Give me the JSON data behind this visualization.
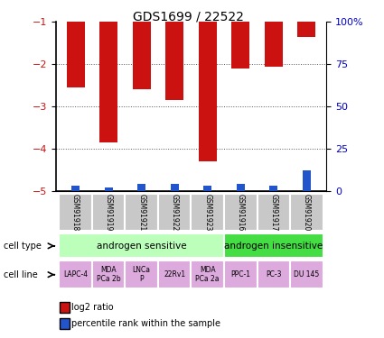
{
  "title": "GDS1699 / 22522",
  "samples": [
    "GSM91918",
    "GSM91919",
    "GSM91921",
    "GSM91922",
    "GSM91923",
    "GSM91916",
    "GSM91917",
    "GSM91920"
  ],
  "log2_ratio": [
    -2.55,
    -3.85,
    -2.6,
    -2.85,
    -4.3,
    -2.1,
    -2.05,
    -1.35
  ],
  "percentile_rank": [
    3,
    2,
    4,
    4,
    3,
    4,
    3,
    12
  ],
  "ylim": [
    -5,
    -1
  ],
  "yticks": [
    -5,
    -4,
    -3,
    -2,
    -1
  ],
  "right_yticks": [
    0,
    25,
    50,
    75,
    100
  ],
  "right_ylim": [
    0,
    100
  ],
  "bar_color": "#cc1111",
  "blue_color": "#2255cc",
  "cell_type_groups": [
    {
      "label": "androgen sensitive",
      "start": 0,
      "end": 5,
      "color": "#bbffbb"
    },
    {
      "label": "androgen insensitive",
      "start": 5,
      "end": 8,
      "color": "#44dd44"
    }
  ],
  "cell_lines": [
    "LAPC-4",
    "MDA\nPCa 2b",
    "LNCa\nP",
    "22Rv1",
    "MDA\nPCa 2a",
    "PPC-1",
    "PC-3",
    "DU 145"
  ],
  "cell_line_color": "#ddaadd",
  "gsm_bg_color": "#c8c8c8",
  "legend_red_label": "log2 ratio",
  "legend_blue_label": "percentile rank within the sample",
  "cell_type_label": "cell type",
  "cell_line_label": "cell line",
  "left_tick_color": "#cc1111",
  "right_tick_color": "#0000cc",
  "grid_color": "#555555",
  "title_fontsize": 10,
  "bar_width": 0.55
}
